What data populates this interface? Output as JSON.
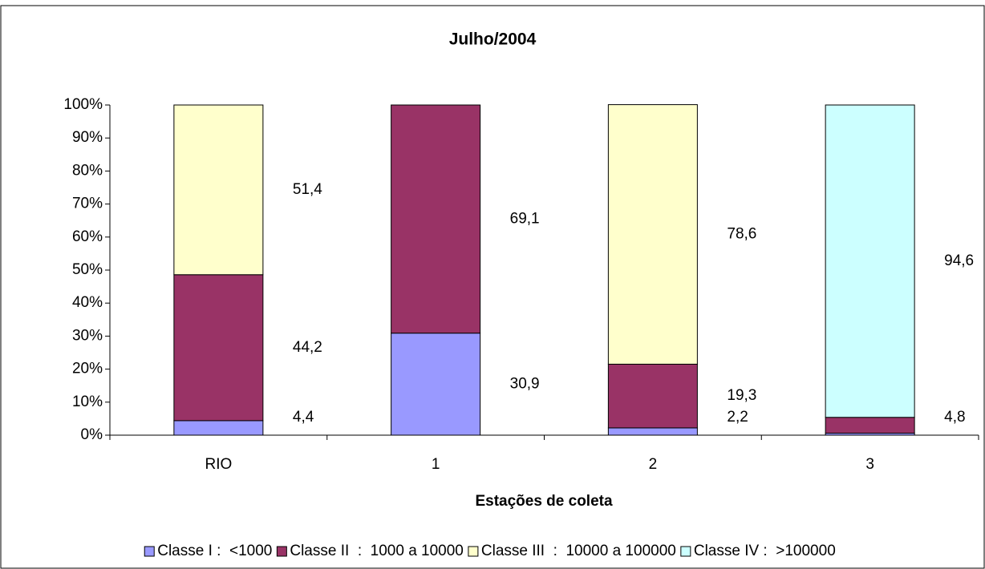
{
  "chart_data": {
    "type": "stacked_bar_100",
    "title": "Julho/2004",
    "x_label": "Estações de coleta",
    "categories": [
      "RIO",
      "1",
      "2",
      "3"
    ],
    "ylim": [
      0,
      100
    ],
    "yticks": [
      {
        "value": 0,
        "label": "0%"
      },
      {
        "value": 10,
        "label": "10%"
      },
      {
        "value": 20,
        "label": "20%"
      },
      {
        "value": 30,
        "label": "30%"
      },
      {
        "value": 40,
        "label": "40%"
      },
      {
        "value": 50,
        "label": "50%"
      },
      {
        "value": 60,
        "label": "60%"
      },
      {
        "value": 70,
        "label": "70%"
      },
      {
        "value": 80,
        "label": "80%"
      },
      {
        "value": 90,
        "label": "90%"
      },
      {
        "value": 100,
        "label": "100%"
      }
    ],
    "legend": "bottom",
    "series": [
      {
        "name": "Classe I :  <1000",
        "color": "#9999ff",
        "values": [
          4.4,
          30.9,
          2.2,
          0.6
        ],
        "value_labels": [
          "4,4",
          "30,9",
          "2,2",
          null
        ]
      },
      {
        "name": "Classe II  :  1000 a 10000",
        "color": "#993366",
        "values": [
          44.2,
          69.1,
          19.3,
          4.8
        ],
        "value_labels": [
          "44,2",
          "69,1",
          "19,3",
          "4,8"
        ]
      },
      {
        "name": "Classe III  :  10000 a 100000",
        "color": "#ffffcc",
        "values": [
          51.4,
          null,
          78.6,
          null
        ],
        "value_labels": [
          "51,4",
          null,
          "78,6",
          null
        ]
      },
      {
        "name": "Classe IV :  >100000",
        "color": "#ccffff",
        "values": [
          null,
          null,
          null,
          94.6
        ],
        "value_labels": [
          null,
          null,
          null,
          "94,6"
        ]
      }
    ]
  }
}
